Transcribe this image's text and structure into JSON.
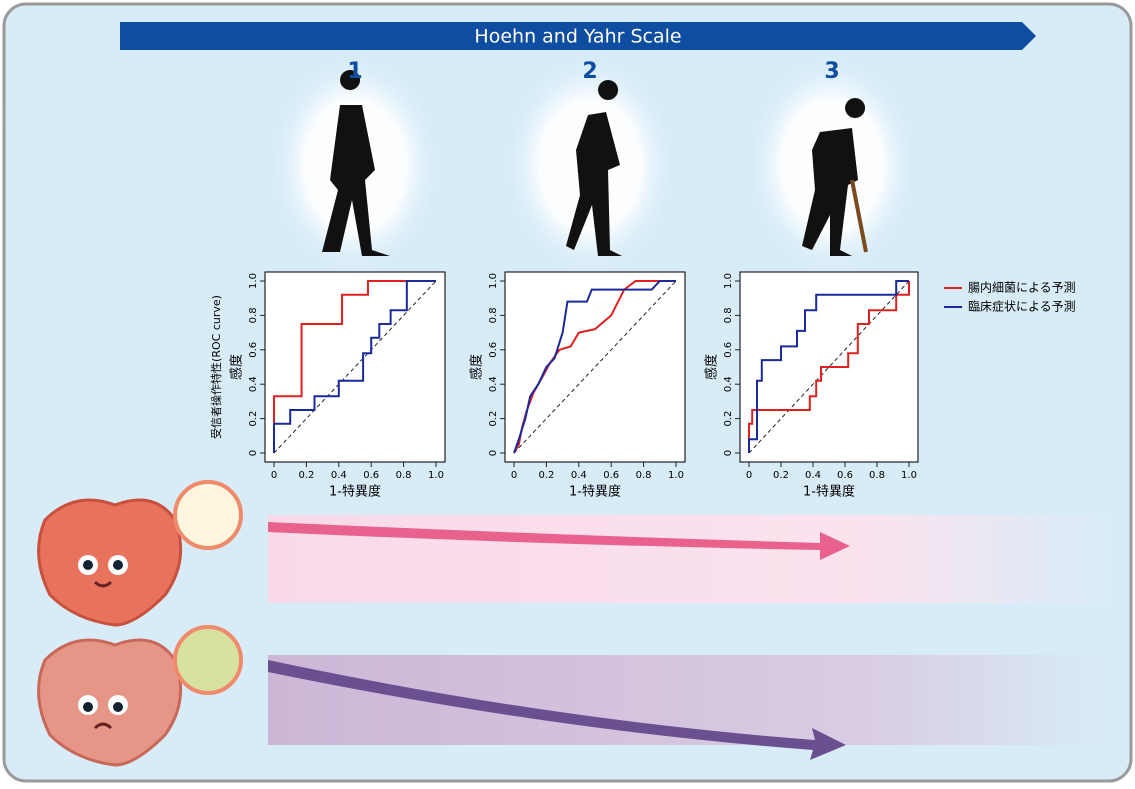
{
  "banner": "Hoehn and Yahr Scale",
  "stages": [
    "1",
    "2",
    "3"
  ],
  "chart_data": [
    {
      "type": "line",
      "roc_label": "受信者操作特性(ROC curve)",
      "y_label": "感度",
      "x_label": "1-特異度",
      "xlim": [
        0,
        1
      ],
      "ylim": [
        0,
        1
      ],
      "xticks": [
        0,
        0.2,
        0.4,
        0.6,
        0.8,
        {
          "value": 1,
          "label": "1.0"
        }
      ],
      "yticks": [
        0,
        0.2,
        0.4,
        0.6,
        0.8,
        {
          "value": 1,
          "label": "1.0"
        }
      ],
      "series": [
        {
          "color": "#e02020",
          "x": [
            0,
            0,
            0.17,
            0.17,
            0.42,
            0.42,
            0.58,
            0.58,
            1
          ],
          "values": [
            0,
            0.33,
            0.33,
            0.75,
            0.75,
            0.92,
            0.92,
            1,
            1
          ]
        },
        {
          "color": "#1a2a9a",
          "x": [
            0,
            0,
            0.1,
            0.1,
            0.25,
            0.25,
            0.4,
            0.4,
            0.55,
            0.55,
            0.6,
            0.6,
            0.65,
            0.65,
            0.72,
            0.72,
            0.82,
            0.82,
            1
          ],
          "values": [
            0,
            0.17,
            0.17,
            0.25,
            0.25,
            0.33,
            0.33,
            0.42,
            0.42,
            0.58,
            0.58,
            0.67,
            0.67,
            0.75,
            0.75,
            0.83,
            0.83,
            1,
            1
          ]
        }
      ]
    },
    {
      "type": "line",
      "y_label": "感度",
      "x_label": "1-特異度",
      "xlim": [
        0,
        1
      ],
      "ylim": [
        0,
        1
      ],
      "xticks": [
        0,
        0.2,
        0.4,
        0.6,
        0.8,
        {
          "value": 1,
          "label": "1.0"
        }
      ],
      "yticks": [
        0,
        0.2,
        0.4,
        0.6,
        0.8,
        {
          "value": 1,
          "label": "1.0"
        }
      ],
      "series": [
        {
          "color": "#e02020",
          "x": [
            0,
            0.03,
            0.05,
            0.08,
            0.12,
            0.18,
            0.22,
            0.28,
            0.35,
            0.4,
            0.5,
            0.6,
            0.68,
            0.75,
            1
          ],
          "values": [
            0,
            0.05,
            0.15,
            0.25,
            0.35,
            0.45,
            0.52,
            0.6,
            0.62,
            0.7,
            0.72,
            0.8,
            0.95,
            1,
            1
          ]
        },
        {
          "color": "#1a2a9a",
          "x": [
            0,
            0.03,
            0.07,
            0.1,
            0.15,
            0.2,
            0.25,
            0.3,
            0.33,
            0.45,
            0.48,
            0.85,
            0.9,
            1
          ],
          "values": [
            0,
            0.08,
            0.2,
            0.33,
            0.4,
            0.5,
            0.55,
            0.7,
            0.88,
            0.88,
            0.95,
            0.95,
            1,
            1
          ]
        }
      ]
    },
    {
      "type": "line",
      "y_label": "感度",
      "x_label": "1-特異度",
      "xlim": [
        0,
        1
      ],
      "ylim": [
        0,
        1
      ],
      "xticks": [
        0,
        0.2,
        0.4,
        0.6,
        0.8,
        {
          "value": 1,
          "label": "1.0"
        }
      ],
      "yticks": [
        0,
        0.2,
        0.4,
        0.6,
        0.8,
        {
          "value": 1,
          "label": "1.0"
        }
      ],
      "legend": "right",
      "series": [
        {
          "name": "腸内細菌による予測",
          "color": "#e02020",
          "x": [
            0,
            0,
            0.02,
            0.02,
            0.38,
            0.38,
            0.42,
            0.42,
            0.45,
            0.45,
            0.62,
            0.62,
            0.68,
            0.68,
            0.75,
            0.75,
            0.92,
            0.92,
            1,
            1
          ],
          "values": [
            0,
            0.17,
            0.17,
            0.25,
            0.25,
            0.33,
            0.33,
            0.42,
            0.42,
            0.5,
            0.5,
            0.58,
            0.58,
            0.75,
            0.75,
            0.83,
            0.83,
            0.92,
            0.92,
            1
          ]
        },
        {
          "name": "臨床症状による予測",
          "color": "#1a2a9a",
          "x": [
            0,
            0,
            0.05,
            0.05,
            0.08,
            0.08,
            0.2,
            0.2,
            0.3,
            0.3,
            0.35,
            0.35,
            0.42,
            0.42,
            0.92,
            0.92,
            1
          ],
          "values": [
            0,
            0.08,
            0.08,
            0.42,
            0.42,
            0.54,
            0.54,
            0.62,
            0.62,
            0.71,
            0.71,
            0.83,
            0.83,
            0.92,
            0.92,
            1,
            1
          ]
        }
      ]
    }
  ]
}
